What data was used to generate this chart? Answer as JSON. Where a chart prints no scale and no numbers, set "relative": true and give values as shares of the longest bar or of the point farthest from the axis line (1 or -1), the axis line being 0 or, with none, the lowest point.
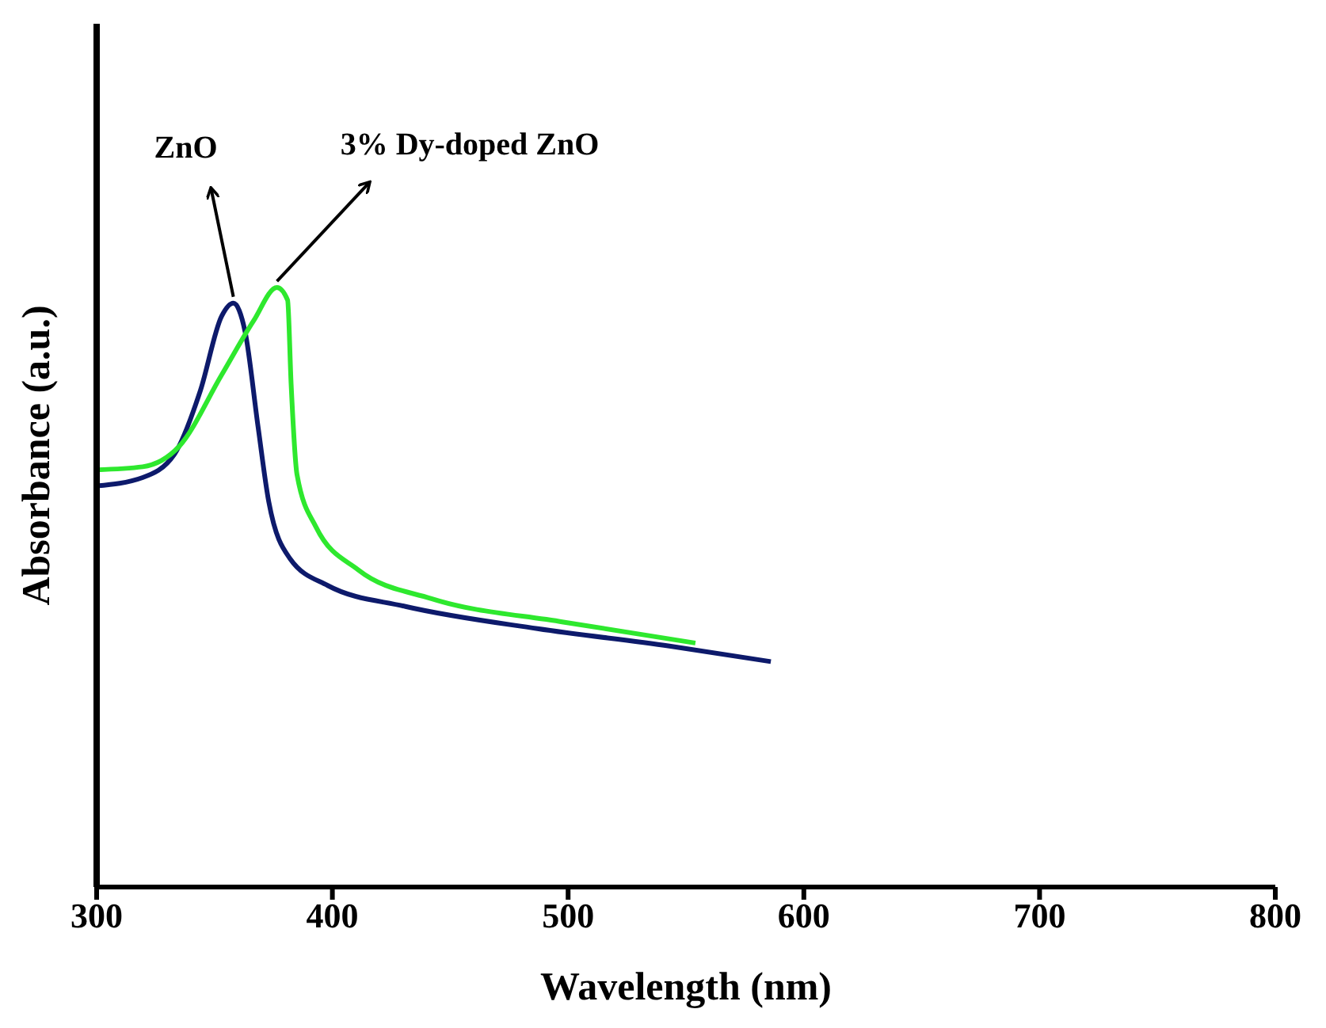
{
  "chart_data": {
    "type": "line",
    "relative": true,
    "xlabel": "Wavelength (nm)",
    "ylabel": "Absorbance (a.u.)",
    "xlim": [
      300,
      800
    ],
    "xticks": [
      300,
      400,
      500,
      600,
      700,
      800
    ],
    "series": [
      {
        "name": "ZnO",
        "color": "#0d1a6b",
        "x": [
          300,
          319.5,
          333,
          344,
          353,
          358,
          363,
          368.5,
          373,
          382,
          398,
          431,
          487,
          543,
          586
        ],
        "values": [
          0.669,
          0.683,
          0.722,
          0.828,
          0.952,
          0.974,
          0.926,
          0.767,
          0.643,
          0.548,
          0.503,
          0.468,
          0.431,
          0.402,
          0.376
        ]
      },
      {
        "name": "3% Dy-doped ZnO",
        "color": "#2ee82e",
        "x": [
          300,
          319.5,
          335,
          353,
          366.5,
          376.5,
          381,
          382.5,
          385,
          393,
          411,
          442,
          498,
          554
        ],
        "values": [
          0.696,
          0.701,
          0.735,
          0.854,
          0.944,
          1,
          0.979,
          0.839,
          0.688,
          0.601,
          0.529,
          0.481,
          0.442,
          0.407
        ]
      }
    ]
  }
}
